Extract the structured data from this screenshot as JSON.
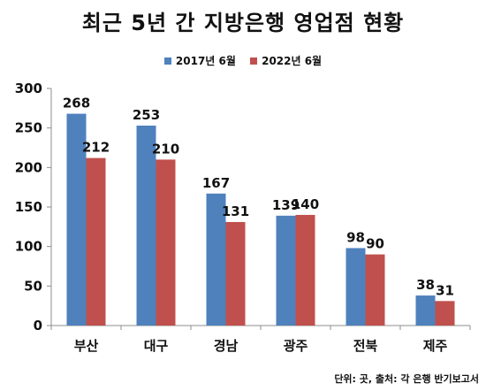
{
  "chart_data": {
    "type": "bar",
    "title": "최근 5년 간 지방은행 영업점 현황",
    "categories": [
      "부산",
      "대구",
      "경남",
      "광주",
      "전북",
      "제주"
    ],
    "series": [
      {
        "name": "2017년 6월",
        "color": "#4f81bd",
        "values": [
          268,
          253,
          167,
          139,
          98,
          38
        ]
      },
      {
        "name": "2022년 6월",
        "color": "#c0504d",
        "values": [
          212,
          210,
          131,
          140,
          90,
          31
        ]
      }
    ],
    "ylim": [
      0,
      300
    ],
    "yticks": [
      "0",
      "50",
      "100",
      "150",
      "200",
      "250",
      "300"
    ],
    "grid": false,
    "legend_position": "top",
    "footnote": "단위: 곳, 출처: 각 은행 반기보고서"
  }
}
